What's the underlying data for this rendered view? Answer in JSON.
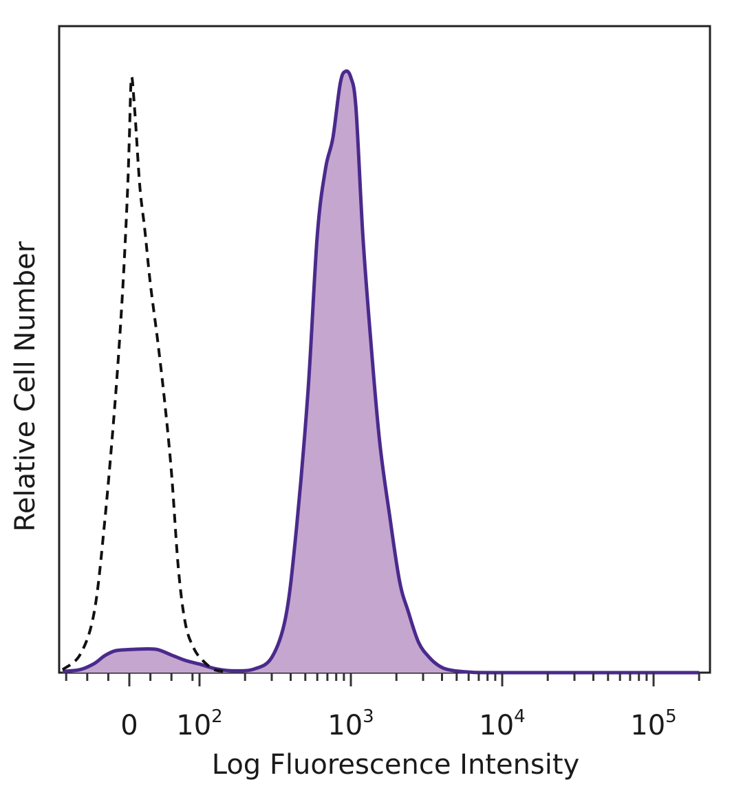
{
  "chart_data": {
    "type": "area",
    "xlabel": "Log Fluorescence Intensity",
    "ylabel": "Relative Cell Number",
    "x_scale": "biexponential",
    "xlim": [
      -100,
      200000
    ],
    "ylim": [
      0,
      100
    ],
    "x_tick_labels": [
      {
        "value": 0,
        "base": "0",
        "exp": ""
      },
      {
        "value": 100,
        "base": "10",
        "exp": "2"
      },
      {
        "value": 1000,
        "base": "10",
        "exp": "3"
      },
      {
        "value": 10000,
        "base": "10",
        "exp": "4"
      },
      {
        "value": 100000,
        "base": "10",
        "exp": "5"
      }
    ],
    "grid": false,
    "legend": "none",
    "series": [
      {
        "style": "dashed",
        "color": "#111111",
        "filled": false,
        "points": [
          [
            -95,
            0.5
          ],
          [
            -70,
            3
          ],
          [
            -50,
            10
          ],
          [
            -35,
            25
          ],
          [
            -20,
            45
          ],
          [
            -10,
            62
          ],
          [
            -3,
            78
          ],
          [
            0,
            88
          ],
          [
            3,
            98
          ],
          [
            8,
            92
          ],
          [
            15,
            80
          ],
          [
            22,
            73
          ],
          [
            30,
            64
          ],
          [
            40,
            55
          ],
          [
            50,
            45
          ],
          [
            60,
            33
          ],
          [
            70,
            17
          ],
          [
            80,
            8
          ],
          [
            92,
            4
          ],
          [
            105,
            2
          ],
          [
            125,
            0.5
          ],
          [
            150,
            0.2
          ]
        ]
      },
      {
        "style": "solid",
        "color": "#4a2a8c",
        "fill": "#c4a6cf",
        "filled": true,
        "points": [
          [
            -95,
            0.2
          ],
          [
            -70,
            0.5
          ],
          [
            -50,
            1.5
          ],
          [
            -35,
            2.8
          ],
          [
            -20,
            3.6
          ],
          [
            0,
            3.8
          ],
          [
            20,
            3.9
          ],
          [
            40,
            3.8
          ],
          [
            60,
            2.9
          ],
          [
            80,
            2.0
          ],
          [
            100,
            1.4
          ],
          [
            130,
            0.6
          ],
          [
            170,
            0.3
          ],
          [
            230,
            0.6
          ],
          [
            300,
            2.5
          ],
          [
            370,
            9
          ],
          [
            430,
            22
          ],
          [
            520,
            46
          ],
          [
            600,
            72
          ],
          [
            680,
            83
          ],
          [
            760,
            88
          ],
          [
            850,
            97
          ],
          [
            920,
            99
          ],
          [
            1000,
            98
          ],
          [
            1080,
            93
          ],
          [
            1200,
            72
          ],
          [
            1350,
            55
          ],
          [
            1550,
            38
          ],
          [
            1800,
            26
          ],
          [
            2100,
            15
          ],
          [
            2400,
            10
          ],
          [
            2800,
            5
          ],
          [
            3300,
            2.5
          ],
          [
            3900,
            1
          ],
          [
            4600,
            0.4
          ],
          [
            6000,
            0.1
          ],
          [
            10000,
            0
          ],
          [
            200000,
            0
          ]
        ]
      }
    ]
  }
}
